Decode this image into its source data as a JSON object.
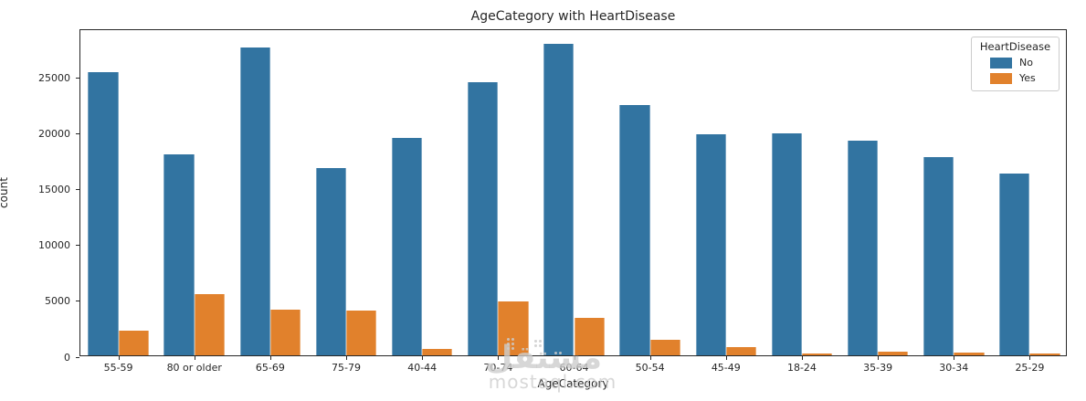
{
  "figure": {
    "title": "AgeCategory with HeartDisease",
    "xlabel": "AgeCategory",
    "ylabel": "count"
  },
  "chart_data": {
    "type": "bar",
    "title": "AgeCategory with HeartDisease",
    "xlabel": "AgeCategory",
    "ylabel": "count",
    "categories": [
      "55-59",
      "80 or older",
      "65-69",
      "75-79",
      "40-44",
      "70-74",
      "60-64",
      "50-54",
      "45-49",
      "18-24",
      "35-39",
      "30-34",
      "25-29"
    ],
    "series": [
      {
        "name": "No",
        "color": "#3274a1",
        "values": [
          25400,
          18000,
          27600,
          16750,
          19450,
          24450,
          27900,
          22400,
          19800,
          19850,
          19250,
          17750,
          16250
        ]
      },
      {
        "name": "Yes",
        "color": "#e1812c",
        "values": [
          2250,
          5500,
          4100,
          4050,
          600,
          4850,
          3350,
          1400,
          770,
          180,
          350,
          270,
          160
        ]
      }
    ],
    "yticks": [
      0,
      5000,
      10000,
      15000,
      20000,
      25000
    ],
    "ylim": [
      0,
      29300
    ],
    "grid": false,
    "legend_position": "upper right"
  },
  "legend": {
    "title": "HeartDisease",
    "items": [
      {
        "label": "No",
        "color": "#3274a1"
      },
      {
        "label": "Yes",
        "color": "#e1812c"
      }
    ]
  },
  "watermark": {
    "arabic": "مستقل",
    "latin": "mostaql.com"
  }
}
